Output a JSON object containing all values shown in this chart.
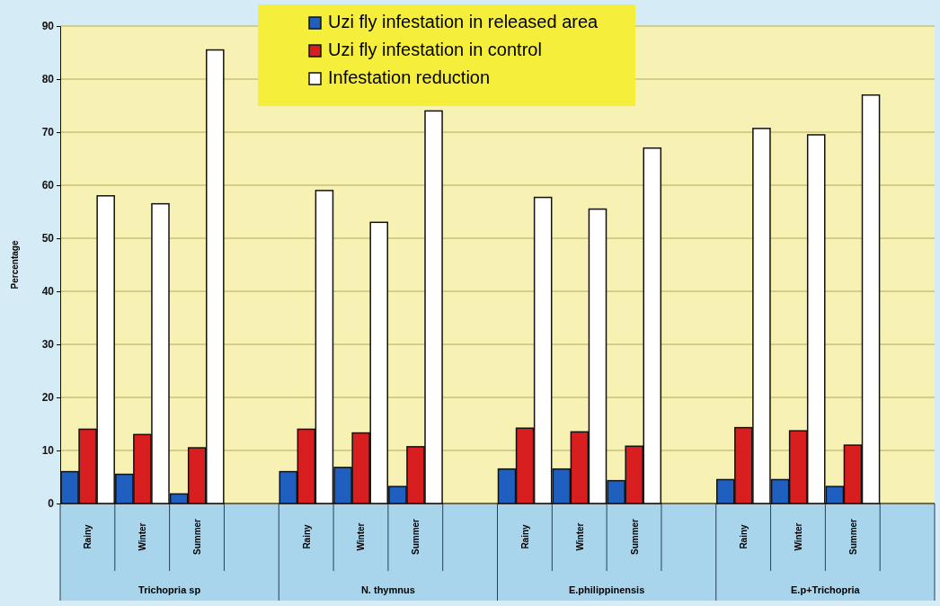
{
  "chart_data": {
    "type": "bar",
    "ylabel": "Percentage",
    "categories": [
      "Rainy",
      "Winter",
      "Summer",
      null,
      "Rainy",
      "Winter",
      "Summer",
      null,
      "Rainy",
      "Winter",
      "Summer",
      null,
      "Rainy",
      "Winter",
      "Summer",
      null
    ],
    "series": [
      {
        "name": "Uzi fly infestation in released area",
        "color": "#1f5fbf",
        "values": [
          6,
          5.5,
          1.8,
          null,
          6,
          6.8,
          3.2,
          null,
          6.5,
          6.5,
          4.3,
          null,
          4.5,
          4.5,
          3.2,
          null
        ]
      },
      {
        "name": "Uzi fly infestation in control",
        "color": "#d81e1e",
        "values": [
          14,
          13,
          10.5,
          null,
          14,
          13.3,
          10.7,
          null,
          14.2,
          13.5,
          10.8,
          null,
          14.3,
          13.7,
          11,
          null
        ]
      },
      {
        "name": "Infestation reduction",
        "color": "#ffffff",
        "values": [
          58,
          56.5,
          85.5,
          null,
          59,
          53,
          74,
          null,
          57.7,
          55.5,
          67,
          null,
          70.7,
          69.5,
          77,
          null
        ]
      }
    ],
    "annotations": [
      "Trichopria sp",
      "N. thymnus",
      "E.philippinensis",
      "E.p+Trichopria"
    ],
    "ylim": [
      0,
      90
    ],
    "yticks": [
      0,
      10,
      20,
      30,
      40,
      50,
      60,
      70,
      80,
      90
    ],
    "grid": "y",
    "legend": "top"
  }
}
